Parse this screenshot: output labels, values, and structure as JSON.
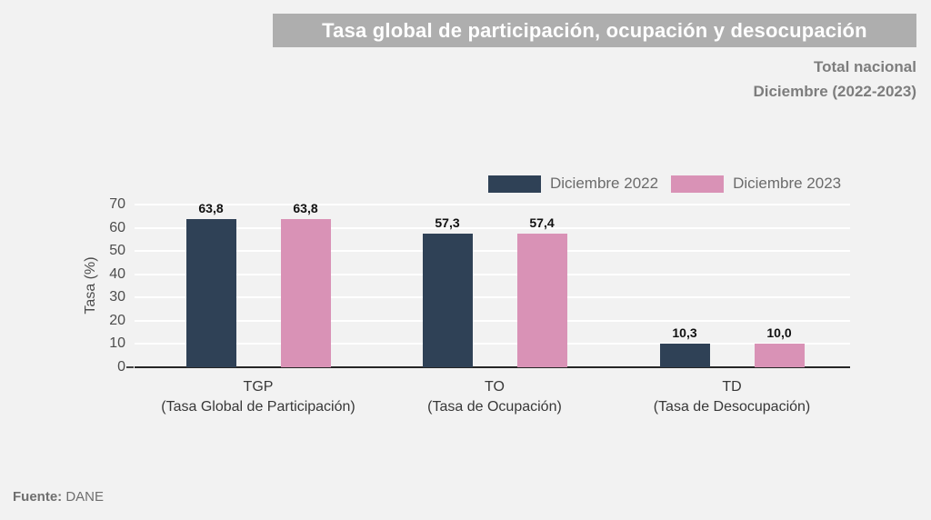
{
  "header": {
    "title": "Tasa global de participación, ocupación y desocupación",
    "subtitle_line1": "Total nacional",
    "subtitle_line2": "Diciembre (2022-2023)"
  },
  "footer": {
    "source_label": "Fuente:",
    "source_value": "DANE"
  },
  "colors": {
    "background": "#f2f2f2",
    "banner": "#aeaeae",
    "banner_text": "#ffffff",
    "subtitle_text": "#7d7d7d",
    "series_2022": "#2f4156",
    "series_2023": "#d992b6",
    "axis_line": "#262626",
    "gridline": "#ffffff",
    "tick_text": "#4d4d4d",
    "data_label": "#111111",
    "legend_text": "#6b6b6b",
    "footer_text": "#6e6e6e"
  },
  "chart_data": {
    "type": "bar",
    "title": "Tasa global de participación, ocupación y desocupación",
    "subtitle": "Total nacional — Diciembre (2022-2023)",
    "categories": [
      "TGP",
      "TO",
      "TD"
    ],
    "category_sublabels": [
      "(Tasa Global de Participación)",
      "(Tasa de Ocupación)",
      "(Tasa de Desocupación)"
    ],
    "series": [
      {
        "name": "Diciembre 2022",
        "color": "#2f4156",
        "values": [
          63.8,
          57.3,
          10.3
        ]
      },
      {
        "name": "Diciembre 2023",
        "color": "#d992b6",
        "values": [
          63.8,
          57.4,
          10.0
        ]
      }
    ],
    "xlabel": "",
    "ylabel": "Tasa (%)",
    "ylim": [
      0,
      70
    ],
    "ytick_step": 10,
    "grid": true,
    "legend_position": "top-right",
    "value_label_format": "one-decimal-comma"
  }
}
